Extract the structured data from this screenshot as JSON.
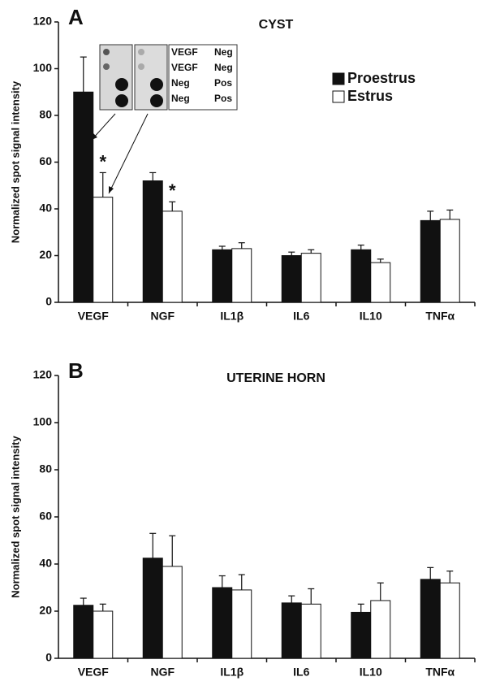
{
  "chart_data": [
    {
      "type": "bar",
      "panel": "A",
      "title": "CYST",
      "ylabel": "Normalized spot signal intensity",
      "categories": [
        "VEGF",
        "NGF",
        "IL1β",
        "IL6",
        "IL10",
        "TNFα"
      ],
      "series": [
        {
          "name": "Proestrus",
          "color": "#111111",
          "values": [
            90,
            52,
            22.5,
            20,
            22.5,
            35
          ],
          "errors": [
            15,
            3.5,
            1.5,
            1.5,
            2,
            4
          ]
        },
        {
          "name": "Estrus",
          "color": "#ffffff",
          "values": [
            45,
            39,
            23,
            21,
            17,
            35.5
          ],
          "errors": [
            10.5,
            4,
            2.5,
            1.5,
            1.5,
            4
          ],
          "markers": [
            "*",
            "*",
            null,
            null,
            null,
            null
          ]
        }
      ],
      "ylim": [
        0,
        120
      ],
      "yticks": [
        0,
        20,
        40,
        60,
        80,
        100,
        120
      ],
      "legend": "upper right",
      "inset": {
        "rows": [
          [
            "VEGF",
            "Neg"
          ],
          [
            "VEGF",
            "Neg"
          ],
          [
            "Neg",
            "Pos"
          ],
          [
            "Neg",
            "Pos"
          ]
        ]
      }
    },
    {
      "type": "bar",
      "panel": "B",
      "title": "UTERINE HORN",
      "ylabel": "Normalized spot signal intensity",
      "categories": [
        "VEGF",
        "NGF",
        "IL1β",
        "IL6",
        "IL10",
        "TNFα"
      ],
      "series": [
        {
          "color": "#111111",
          "values": [
            22.5,
            42.5,
            30,
            23.5,
            19.5,
            33.5
          ],
          "errors": [
            3,
            10.5,
            5,
            3,
            3.5,
            5
          ]
        },
        {
          "color": "#ffffff",
          "values": [
            20,
            39,
            29,
            23,
            24.5,
            32
          ],
          "errors": [
            3,
            13,
            6.5,
            6.5,
            7.5,
            5
          ]
        }
      ],
      "ylim": [
        0,
        120
      ],
      "yticks": [
        0,
        20,
        40,
        60,
        80,
        100,
        120
      ]
    }
  ]
}
